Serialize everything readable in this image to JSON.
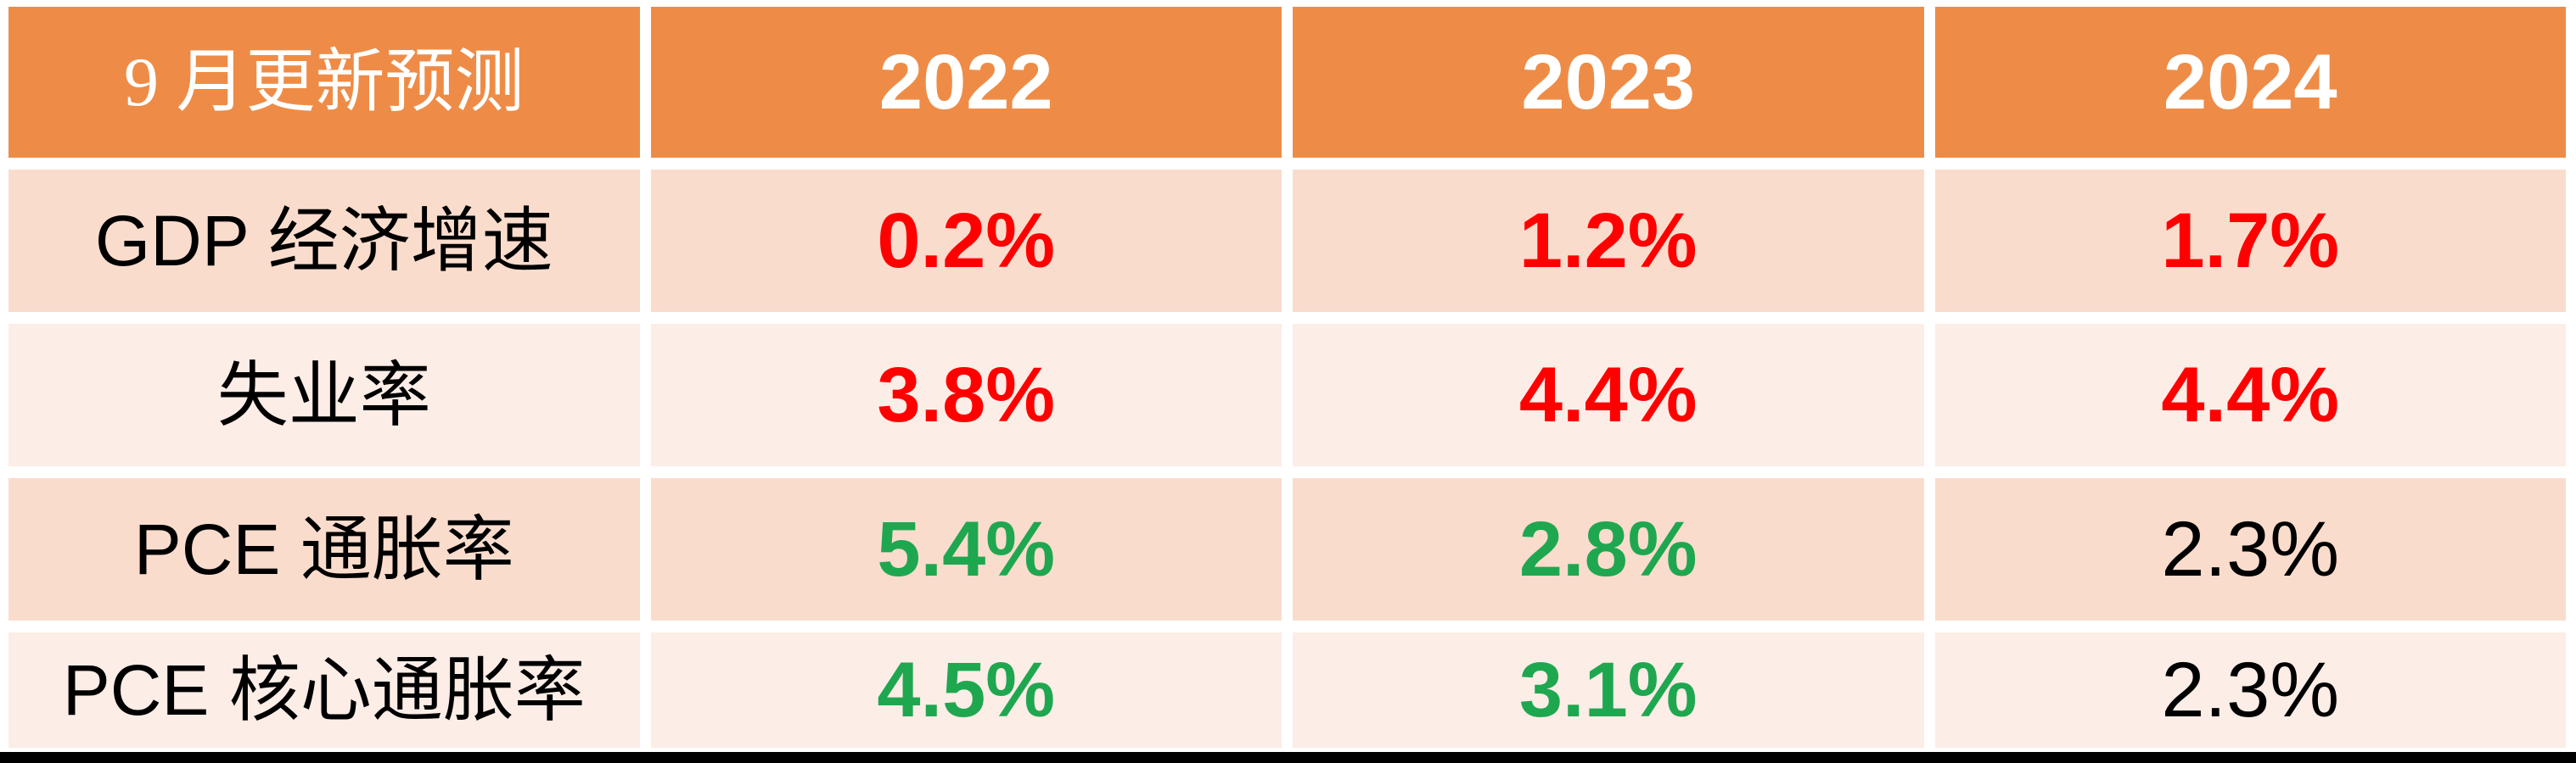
{
  "colors": {
    "header_bg": "#EE8C47",
    "header_text": "#FFFFFF",
    "band_dark": "#FADCCD",
    "band_light": "#FCEDE7",
    "value_red": "#FF0000",
    "value_green": "#1FA750",
    "value_black": "#000000",
    "bottom_bar": "#000000"
  },
  "table": {
    "header": {
      "cells": [
        {
          "text": "9 月更新预测"
        },
        {
          "text": "2022"
        },
        {
          "text": "2023"
        },
        {
          "text": "2024"
        }
      ]
    },
    "rows": [
      {
        "label": "GDP 经济增速",
        "cells": [
          {
            "text": "0.2%",
            "color": "#FF0000",
            "weight": "700"
          },
          {
            "text": "1.2%",
            "color": "#FF0000",
            "weight": "700"
          },
          {
            "text": "1.7%",
            "color": "#FF0000",
            "weight": "700"
          }
        ]
      },
      {
        "label": "失业率",
        "cells": [
          {
            "text": "3.8%",
            "color": "#FF0000",
            "weight": "700"
          },
          {
            "text": "4.4%",
            "color": "#FF0000",
            "weight": "700"
          },
          {
            "text": "4.4%",
            "color": "#FF0000",
            "weight": "700"
          }
        ]
      },
      {
        "label": "PCE 通胀率",
        "cells": [
          {
            "text": "5.4%",
            "color": "#1FA750",
            "weight": "700"
          },
          {
            "text": "2.8%",
            "color": "#1FA750",
            "weight": "700"
          },
          {
            "text": "2.3%",
            "color": "#000000",
            "weight": "400"
          }
        ]
      },
      {
        "label": "PCE 核心通胀率",
        "cells": [
          {
            "text": "4.5%",
            "color": "#1FA750",
            "weight": "700"
          },
          {
            "text": "3.1%",
            "color": "#1FA750",
            "weight": "700"
          },
          {
            "text": "2.3%",
            "color": "#000000",
            "weight": "400"
          }
        ]
      }
    ]
  },
  "chart_data": {
    "type": "table",
    "title": "9 月更新预测",
    "columns": [
      "9 月更新预测",
      "2022",
      "2023",
      "2024"
    ],
    "rows": [
      [
        "GDP 经济增速",
        "0.2%",
        "1.2%",
        "1.7%"
      ],
      [
        "失业率",
        "3.8%",
        "4.4%",
        "4.4%"
      ],
      [
        "PCE 通胀率",
        "5.4%",
        "2.8%",
        "2.3%"
      ],
      [
        "PCE 核心通胀率",
        "4.5%",
        "3.1%",
        "2.3%"
      ]
    ],
    "cell_text_colors": [
      [
        "black",
        "red",
        "red",
        "red"
      ],
      [
        "black",
        "red",
        "red",
        "red"
      ],
      [
        "black",
        "green",
        "green",
        "black"
      ],
      [
        "black",
        "green",
        "green",
        "black"
      ]
    ],
    "layout": "banded orange header table, white cell gaps, black bar at bottom"
  }
}
